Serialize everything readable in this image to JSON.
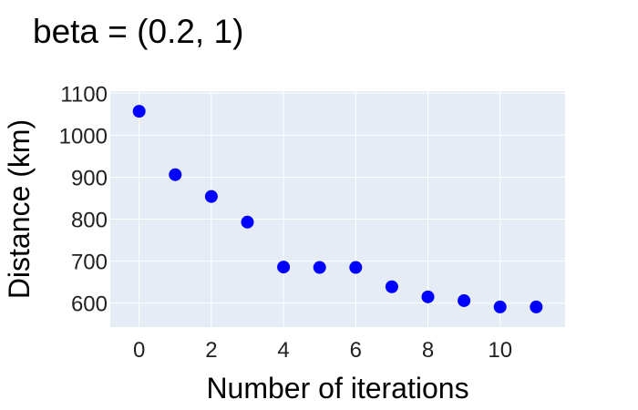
{
  "chart_data": {
    "type": "scatter",
    "title": "beta = (0.2, 1)",
    "xlabel": "Number of iterations",
    "ylabel": "Distance (km)",
    "x": [
      0,
      1,
      2,
      3,
      4,
      5,
      6,
      7,
      8,
      9,
      10,
      11
    ],
    "y": [
      1057,
      906,
      854,
      793,
      686,
      685,
      685,
      639,
      615,
      606,
      591,
      591
    ],
    "xlim": [
      -0.8,
      11.8
    ],
    "ylim": [
      543,
      1105
    ],
    "xticks": [
      0,
      2,
      4,
      6,
      8,
      10
    ],
    "yticks": [
      600,
      700,
      800,
      900,
      1000,
      1100
    ],
    "grid": true,
    "colors": {
      "plot_background": "#e5ecf6",
      "grid": "#ffffff",
      "marker": "#0000ff"
    }
  }
}
